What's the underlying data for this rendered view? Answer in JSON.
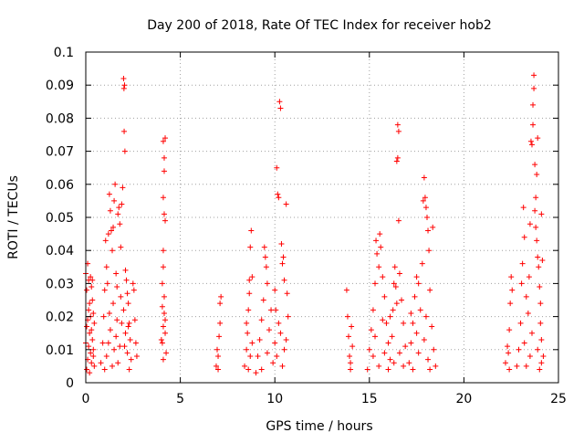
{
  "chart_data": {
    "type": "scatter",
    "title": "Day 200 of 2018, Rate Of TEC Index for receiver hob2",
    "xlabel": "GPS time / hours",
    "ylabel": "ROTI / TECUs",
    "xlim": [
      0,
      25
    ],
    "ylim": [
      0,
      0.1
    ],
    "grid": true,
    "marker": "plus",
    "color": "#ff0000",
    "xticks": [
      {
        "value": 0,
        "label": "0"
      },
      {
        "value": 5,
        "label": "5"
      },
      {
        "value": 10,
        "label": "10"
      },
      {
        "value": 15,
        "label": "15"
      },
      {
        "value": 20,
        "label": "20"
      },
      {
        "value": 25,
        "label": "25"
      }
    ],
    "yticks": [
      {
        "value": 0,
        "label": "0"
      },
      {
        "value": 0.01,
        "label": "0.01"
      },
      {
        "value": 0.02,
        "label": "0.02"
      },
      {
        "value": 0.03,
        "label": "0.03"
      },
      {
        "value": 0.04,
        "label": "0.04"
      },
      {
        "value": 0.05,
        "label": "0.05"
      },
      {
        "value": 0.06,
        "label": "0.06"
      },
      {
        "value": 0.07,
        "label": "0.07"
      },
      {
        "value": 0.08,
        "label": "0.08"
      },
      {
        "value": 0.09,
        "label": "0.09"
      },
      {
        "value": 0.1,
        "label": "0.1"
      }
    ],
    "points": [
      [
        0.0,
        0.033
      ],
      [
        0.05,
        0.028
      ],
      [
        0.1,
        0.036
      ],
      [
        0.15,
        0.031
      ],
      [
        0.2,
        0.024
      ],
      [
        0.25,
        0.032
      ],
      [
        0.3,
        0.029
      ],
      [
        0.35,
        0.031
      ],
      [
        0.4,
        0.021
      ],
      [
        0.45,
        0.018
      ],
      [
        0.05,
        0.004
      ],
      [
        0.1,
        0.007
      ],
      [
        0.15,
        0.011
      ],
      [
        0.2,
        0.015
      ],
      [
        0.25,
        0.009
      ],
      [
        0.3,
        0.006
      ],
      [
        0.35,
        0.013
      ],
      [
        0.4,
        0.008
      ],
      [
        0.45,
        0.005
      ],
      [
        0.1,
        0.019
      ],
      [
        0.0,
        0.012
      ],
      [
        0.2,
        0.003
      ],
      [
        0.3,
        0.016
      ],
      [
        0.4,
        0.01
      ],
      [
        0.15,
        0.022
      ],
      [
        0.35,
        0.025
      ],
      [
        0.25,
        0.02
      ],
      [
        0.05,
        0.017
      ],
      [
        0.8,
        0.006
      ],
      [
        0.9,
        0.012
      ],
      [
        0.95,
        0.02
      ],
      [
        1.0,
        0.028
      ],
      [
        1.05,
        0.043
      ],
      [
        1.1,
        0.035
      ],
      [
        1.15,
        0.03
      ],
      [
        1.2,
        0.045
      ],
      [
        1.25,
        0.057
      ],
      [
        1.3,
        0.052
      ],
      [
        1.35,
        0.046
      ],
      [
        1.4,
        0.04
      ],
      [
        1.45,
        0.047
      ],
      [
        1.5,
        0.055
      ],
      [
        1.55,
        0.06
      ],
      [
        1.6,
        0.033
      ],
      [
        1.65,
        0.029
      ],
      [
        1.7,
        0.051
      ],
      [
        1.75,
        0.053
      ],
      [
        1.8,
        0.048
      ],
      [
        1.85,
        0.041
      ],
      [
        1.9,
        0.054
      ],
      [
        1.95,
        0.059
      ],
      [
        2.0,
        0.092
      ],
      [
        2.02,
        0.089
      ],
      [
        2.05,
        0.09
      ],
      [
        2.03,
        0.076
      ],
      [
        2.07,
        0.07
      ],
      [
        2.1,
        0.034
      ],
      [
        2.15,
        0.031
      ],
      [
        2.2,
        0.027
      ],
      [
        2.25,
        0.024
      ],
      [
        2.3,
        0.018
      ],
      [
        2.35,
        0.013
      ],
      [
        2.4,
        0.007
      ],
      [
        2.5,
        0.03
      ],
      [
        2.55,
        0.028
      ],
      [
        2.6,
        0.019
      ],
      [
        2.65,
        0.012
      ],
      [
        2.7,
        0.008
      ],
      [
        1.0,
        0.004
      ],
      [
        1.1,
        0.008
      ],
      [
        1.2,
        0.012
      ],
      [
        1.3,
        0.016
      ],
      [
        1.4,
        0.005
      ],
      [
        1.5,
        0.01
      ],
      [
        1.6,
        0.014
      ],
      [
        1.7,
        0.006
      ],
      [
        1.8,
        0.011
      ],
      [
        1.9,
        0.018
      ],
      [
        2.0,
        0.022
      ],
      [
        2.1,
        0.015
      ],
      [
        2.2,
        0.009
      ],
      [
        2.3,
        0.004
      ],
      [
        1.25,
        0.021
      ],
      [
        1.45,
        0.024
      ],
      [
        1.65,
        0.019
      ],
      [
        1.85,
        0.026
      ],
      [
        2.05,
        0.011
      ],
      [
        2.25,
        0.017
      ],
      [
        4.0,
        0.013
      ],
      [
        4.05,
        0.023
      ],
      [
        4.1,
        0.035
      ],
      [
        4.1,
        0.073
      ],
      [
        4.15,
        0.068
      ],
      [
        4.2,
        0.074
      ],
      [
        4.15,
        0.064
      ],
      [
        4.1,
        0.056
      ],
      [
        4.15,
        0.051
      ],
      [
        4.2,
        0.049
      ],
      [
        4.1,
        0.04
      ],
      [
        4.05,
        0.03
      ],
      [
        4.15,
        0.026
      ],
      [
        4.2,
        0.019
      ],
      [
        4.25,
        0.009
      ],
      [
        4.1,
        0.007
      ],
      [
        4.05,
        0.012
      ],
      [
        4.2,
        0.015
      ],
      [
        4.15,
        0.021
      ],
      [
        4.1,
        0.017
      ],
      [
        6.9,
        0.005
      ],
      [
        6.95,
        0.01
      ],
      [
        7.0,
        0.004
      ],
      [
        7.05,
        0.014
      ],
      [
        7.1,
        0.024
      ],
      [
        7.15,
        0.026
      ],
      [
        7.1,
        0.018
      ],
      [
        7.0,
        0.008
      ],
      [
        8.4,
        0.005
      ],
      [
        8.5,
        0.01
      ],
      [
        8.55,
        0.015
      ],
      [
        8.6,
        0.022
      ],
      [
        8.65,
        0.031
      ],
      [
        8.7,
        0.041
      ],
      [
        8.75,
        0.046
      ],
      [
        8.8,
        0.032
      ],
      [
        8.7,
        0.008
      ],
      [
        8.6,
        0.004
      ],
      [
        8.8,
        0.012
      ],
      [
        8.5,
        0.018
      ],
      [
        8.65,
        0.027
      ],
      [
        9.0,
        0.003
      ],
      [
        9.1,
        0.008
      ],
      [
        9.2,
        0.013
      ],
      [
        9.3,
        0.019
      ],
      [
        9.4,
        0.025
      ],
      [
        9.5,
        0.038
      ],
      [
        9.45,
        0.041
      ],
      [
        9.55,
        0.035
      ],
      [
        9.6,
        0.03
      ],
      [
        9.7,
        0.016
      ],
      [
        9.9,
        0.006
      ],
      [
        10.0,
        0.012
      ],
      [
        10.05,
        0.022
      ],
      [
        10.1,
        0.065
      ],
      [
        10.15,
        0.057
      ],
      [
        10.2,
        0.056
      ],
      [
        10.25,
        0.085
      ],
      [
        10.3,
        0.083
      ],
      [
        10.35,
        0.042
      ],
      [
        10.4,
        0.036
      ],
      [
        10.45,
        0.038
      ],
      [
        10.5,
        0.031
      ],
      [
        10.6,
        0.054
      ],
      [
        10.65,
        0.027
      ],
      [
        10.7,
        0.02
      ],
      [
        10.5,
        0.01
      ],
      [
        10.4,
        0.005
      ],
      [
        10.3,
        0.015
      ],
      [
        10.2,
        0.018
      ],
      [
        10.1,
        0.008
      ],
      [
        9.8,
        0.022
      ],
      [
        9.6,
        0.009
      ],
      [
        9.3,
        0.004
      ],
      [
        10.0,
        0.028
      ],
      [
        10.6,
        0.013
      ],
      [
        13.8,
        0.028
      ],
      [
        13.85,
        0.02
      ],
      [
        13.9,
        0.014
      ],
      [
        13.95,
        0.008
      ],
      [
        14.0,
        0.004
      ],
      [
        14.05,
        0.017
      ],
      [
        14.1,
        0.011
      ],
      [
        14.0,
        0.006
      ],
      [
        14.9,
        0.004
      ],
      [
        15.0,
        0.01
      ],
      [
        15.1,
        0.016
      ],
      [
        15.2,
        0.022
      ],
      [
        15.3,
        0.03
      ],
      [
        15.35,
        0.043
      ],
      [
        15.4,
        0.039
      ],
      [
        15.5,
        0.035
      ],
      [
        15.55,
        0.045
      ],
      [
        15.6,
        0.041
      ],
      [
        15.7,
        0.032
      ],
      [
        15.8,
        0.026
      ],
      [
        15.9,
        0.018
      ],
      [
        16.0,
        0.012
      ],
      [
        16.1,
        0.007
      ],
      [
        16.2,
        0.014
      ],
      [
        16.25,
        0.022
      ],
      [
        16.3,
        0.03
      ],
      [
        16.35,
        0.035
      ],
      [
        16.4,
        0.029
      ],
      [
        16.45,
        0.024
      ],
      [
        16.5,
        0.078
      ],
      [
        16.55,
        0.076
      ],
      [
        16.5,
        0.068
      ],
      [
        16.45,
        0.067
      ],
      [
        16.55,
        0.049
      ],
      [
        16.6,
        0.033
      ],
      [
        16.7,
        0.025
      ],
      [
        16.8,
        0.018
      ],
      [
        16.9,
        0.011
      ],
      [
        15.2,
        0.008
      ],
      [
        15.5,
        0.005
      ],
      [
        15.8,
        0.009
      ],
      [
        16.0,
        0.004
      ],
      [
        16.3,
        0.006
      ],
      [
        16.6,
        0.009
      ],
      [
        16.8,
        0.005
      ],
      [
        15.3,
        0.014
      ],
      [
        15.7,
        0.019
      ],
      [
        16.1,
        0.02
      ],
      [
        17.1,
        0.006
      ],
      [
        17.2,
        0.012
      ],
      [
        17.3,
        0.018
      ],
      [
        17.4,
        0.026
      ],
      [
        17.5,
        0.032
      ],
      [
        17.6,
        0.03
      ],
      [
        17.7,
        0.022
      ],
      [
        17.8,
        0.036
      ],
      [
        17.85,
        0.055
      ],
      [
        17.9,
        0.062
      ],
      [
        17.95,
        0.056
      ],
      [
        18.0,
        0.053
      ],
      [
        18.05,
        0.05
      ],
      [
        18.1,
        0.046
      ],
      [
        18.15,
        0.04
      ],
      [
        18.2,
        0.028
      ],
      [
        18.3,
        0.017
      ],
      [
        18.4,
        0.01
      ],
      [
        18.5,
        0.005
      ],
      [
        18.2,
        0.004
      ],
      [
        18.35,
        0.047
      ],
      [
        17.3,
        0.004
      ],
      [
        17.6,
        0.009
      ],
      [
        17.9,
        0.013
      ],
      [
        18.0,
        0.02
      ],
      [
        17.5,
        0.015
      ],
      [
        17.2,
        0.021
      ],
      [
        18.1,
        0.007
      ],
      [
        22.2,
        0.006
      ],
      [
        22.3,
        0.011
      ],
      [
        22.4,
        0.016
      ],
      [
        22.45,
        0.024
      ],
      [
        22.5,
        0.032
      ],
      [
        22.55,
        0.028
      ],
      [
        22.4,
        0.004
      ],
      [
        22.35,
        0.009
      ],
      [
        22.8,
        0.005
      ],
      [
        22.9,
        0.01
      ],
      [
        23.0,
        0.018
      ],
      [
        23.05,
        0.03
      ],
      [
        23.1,
        0.036
      ],
      [
        23.15,
        0.053
      ],
      [
        23.2,
        0.044
      ],
      [
        23.3,
        0.026
      ],
      [
        23.4,
        0.021
      ],
      [
        23.45,
        0.032
      ],
      [
        23.5,
        0.048
      ],
      [
        23.55,
        0.073
      ],
      [
        23.6,
        0.072
      ],
      [
        23.65,
        0.078
      ],
      [
        23.65,
        0.084
      ],
      [
        23.7,
        0.089
      ],
      [
        23.7,
        0.093
      ],
      [
        23.75,
        0.066
      ],
      [
        23.8,
        0.056
      ],
      [
        23.85,
        0.063
      ],
      [
        23.9,
        0.074
      ],
      [
        23.75,
        0.052
      ],
      [
        23.8,
        0.047
      ],
      [
        23.85,
        0.043
      ],
      [
        23.9,
        0.038
      ],
      [
        23.95,
        0.035
      ],
      [
        24.0,
        0.029
      ],
      [
        24.05,
        0.024
      ],
      [
        24.1,
        0.051
      ],
      [
        24.05,
        0.018
      ],
      [
        24.1,
        0.013
      ],
      [
        24.15,
        0.037
      ],
      [
        24.2,
        0.008
      ],
      [
        24.0,
        0.004
      ],
      [
        23.3,
        0.005
      ],
      [
        23.5,
        0.008
      ],
      [
        23.9,
        0.01
      ],
      [
        23.2,
        0.012
      ],
      [
        23.6,
        0.015
      ],
      [
        24.1,
        0.006
      ]
    ]
  }
}
